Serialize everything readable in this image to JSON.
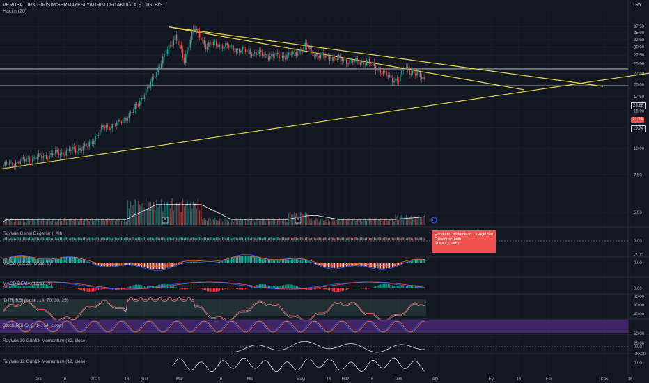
{
  "header": {
    "title": "VERUSATURK GİRİŞİM SERMAYESİ YATIRIM ORTAKLIĞI A.Ş., 1G, BIST",
    "volume_label": "Hacim (20)",
    "currency": "TRY"
  },
  "price_pills": {
    "upper": "23.68",
    "current": "21.24",
    "lower": "19.74"
  },
  "info_box": {
    "row1_label": "Hareketli Ortalamalar:",
    "row1_value": "Güçlü Sat",
    "row2_label": "Osilatörler: Nötr",
    "row3_label": "SONUÇ: Satış"
  },
  "indicators": {
    "genel": "RayWin Genel Değerler (, All)",
    "macd": "MACD (12, 26, close, 9)",
    "macd_dema": "MACD DEMA (12, 26, 9)",
    "rsi": "[D7R] RSI (close, 14, 70, 30, 25)",
    "stoch": "Stoch RSI (3, 3, 14, 14, close)",
    "mom30": "RayWin 30 Günlük Momentum (30, close)",
    "mom12": "RayWin 12 Günlük Momentum (12, close)"
  },
  "markers": {
    "earnings": "E",
    "dividend": "D"
  },
  "chart_data": {
    "type": "candlestick",
    "title": "VERUSATURK GİRİŞİM SERMAYESİ YATIRIM ORTAKLIĞI A.Ş., 1G, BIST",
    "y_scale": "log",
    "yticks": [
      "37.50",
      "35.00",
      "32.50",
      "30.00",
      "27.50",
      "25.00",
      "22.50",
      "20.00",
      "17.50",
      "15.00",
      "12.50",
      "10.00",
      "7.50",
      "5.00"
    ],
    "xticks": [
      "Ara",
      "16",
      "2021",
      "16",
      "Şub",
      "Mar",
      "16",
      "Nis",
      "Mayı",
      "16",
      "Haz",
      "16",
      "Tem",
      "Ağu",
      "Eyl",
      "16",
      "Eki",
      "Kas",
      "16"
    ],
    "close_anchors": [
      [
        0,
        8.3
      ],
      [
        20,
        9.0
      ],
      [
        40,
        9.6
      ],
      [
        55,
        10.2
      ],
      [
        65,
        12.5
      ],
      [
        75,
        13.1
      ],
      [
        85,
        15.0
      ],
      [
        95,
        19.5
      ],
      [
        105,
        27.0
      ],
      [
        112,
        34.0
      ],
      [
        118,
        25.5
      ],
      [
        124,
        36.8
      ],
      [
        132,
        30.5
      ],
      [
        140,
        31.0
      ],
      [
        150,
        29.5
      ],
      [
        160,
        28.5
      ],
      [
        170,
        27.5
      ],
      [
        180,
        27.0
      ],
      [
        190,
        27.8
      ],
      [
        197,
        30.2
      ],
      [
        204,
        27.5
      ],
      [
        212,
        26.9
      ],
      [
        220,
        26.3
      ],
      [
        230,
        25.5
      ],
      [
        238,
        25.6
      ],
      [
        245,
        23.4
      ],
      [
        252,
        21.5
      ],
      [
        258,
        21.0
      ],
      [
        262,
        24.0
      ],
      [
        268,
        22.5
      ],
      [
        275,
        21.24
      ]
    ],
    "horizontal_levels": [
      23.68,
      19.74
    ],
    "current_price": 21.24,
    "indicator_scales": {
      "genel": [
        "0.00",
        "-2.00"
      ],
      "macd": [
        "0.00"
      ],
      "macd_dema": [
        "0.00"
      ],
      "rsi": [
        "80.00",
        "60.00",
        "40.00"
      ],
      "stoch": [
        "50.00"
      ],
      "mom30": [
        "20.00",
        "0.00",
        "-20.00"
      ],
      "mom12": [
        "0.00"
      ]
    }
  },
  "colors": {
    "up": "#26a69a",
    "down": "#ef5350",
    "trendline": "#e6d64a",
    "level": "#d1d4dc",
    "stoch_band": "#4a2a78",
    "rsi_band": "#2e4a45",
    "background": "#131722"
  }
}
